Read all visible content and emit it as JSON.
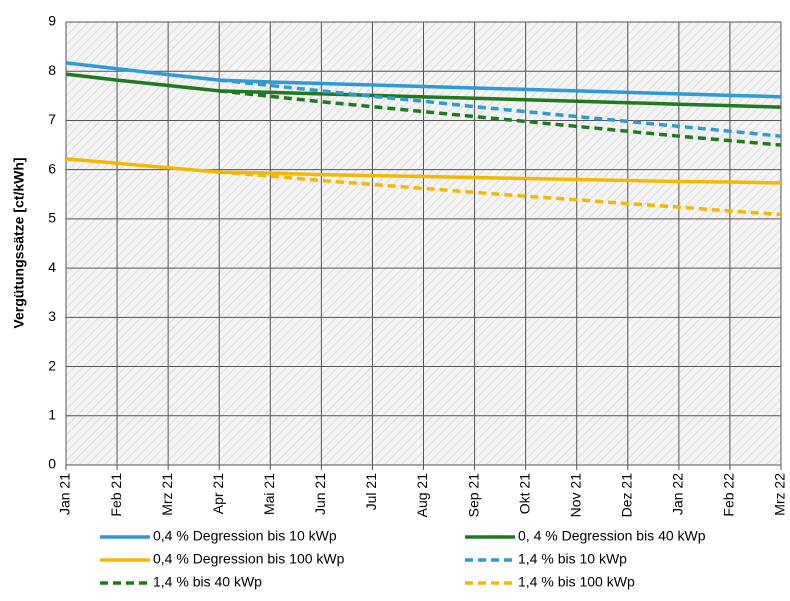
{
  "chart_data": {
    "type": "line",
    "y_label": "Vergütungssätze [ct/kWh]",
    "categories": [
      "Jan 21",
      "Feb 21",
      "Mrz 21",
      "Apr 21",
      "Mai 21",
      "Jun 21",
      "Jul 21",
      "Aug 21",
      "Sep 21",
      "Okt 21",
      "Nov 21",
      "Dez 21",
      "Jan 22",
      "Feb 22",
      "Mrz 22"
    ],
    "ylim": [
      0,
      9
    ],
    "yticks": [
      0,
      1,
      2,
      3,
      4,
      5,
      6,
      7,
      8,
      9
    ],
    "grid": true,
    "legend": "bottom",
    "series": [
      {
        "name": "0,4 % Degression bis 10 kWp",
        "color": "#2e9bd6",
        "dashed": false,
        "values": [
          8.17,
          8.05,
          7.93,
          7.82,
          7.78,
          7.75,
          7.72,
          7.69,
          7.66,
          7.63,
          7.6,
          7.57,
          7.54,
          7.51,
          7.48
        ]
      },
      {
        "name": "0, 4 % Degression bis 40 kWp",
        "color": "#1f7a1f",
        "dashed": false,
        "values": [
          7.94,
          7.82,
          7.71,
          7.6,
          7.57,
          7.54,
          7.51,
          7.48,
          7.45,
          7.42,
          7.39,
          7.36,
          7.33,
          7.3,
          7.27
        ]
      },
      {
        "name": "0,4 % Degression bis 100 kWp",
        "color": "#f5b800",
        "dashed": false,
        "values": [
          6.22,
          6.13,
          6.04,
          5.95,
          5.93,
          5.9,
          5.88,
          5.86,
          5.84,
          5.82,
          5.8,
          5.78,
          5.76,
          5.75,
          5.73
        ]
      },
      {
        "name": "1,4 % bis 10 kWp",
        "color": "#2e9bd6",
        "dashed": true,
        "values": [
          null,
          null,
          null,
          7.82,
          7.71,
          7.6,
          7.49,
          7.39,
          7.28,
          7.18,
          7.08,
          6.98,
          6.88,
          6.78,
          6.68
        ]
      },
      {
        "name": "1,4 % bis 40 kWp",
        "color": "#1f7a1f",
        "dashed": true,
        "values": [
          null,
          null,
          null,
          7.6,
          7.49,
          7.38,
          7.28,
          7.18,
          7.08,
          6.98,
          6.88,
          6.78,
          6.68,
          6.59,
          6.5
        ]
      },
      {
        "name": "1,4 % bis 100 kWp",
        "color": "#f5b800",
        "dashed": true,
        "values": [
          null,
          null,
          null,
          5.95,
          5.87,
          5.78,
          5.7,
          5.62,
          5.54,
          5.46,
          5.39,
          5.31,
          5.24,
          5.16,
          5.09
        ]
      }
    ]
  }
}
